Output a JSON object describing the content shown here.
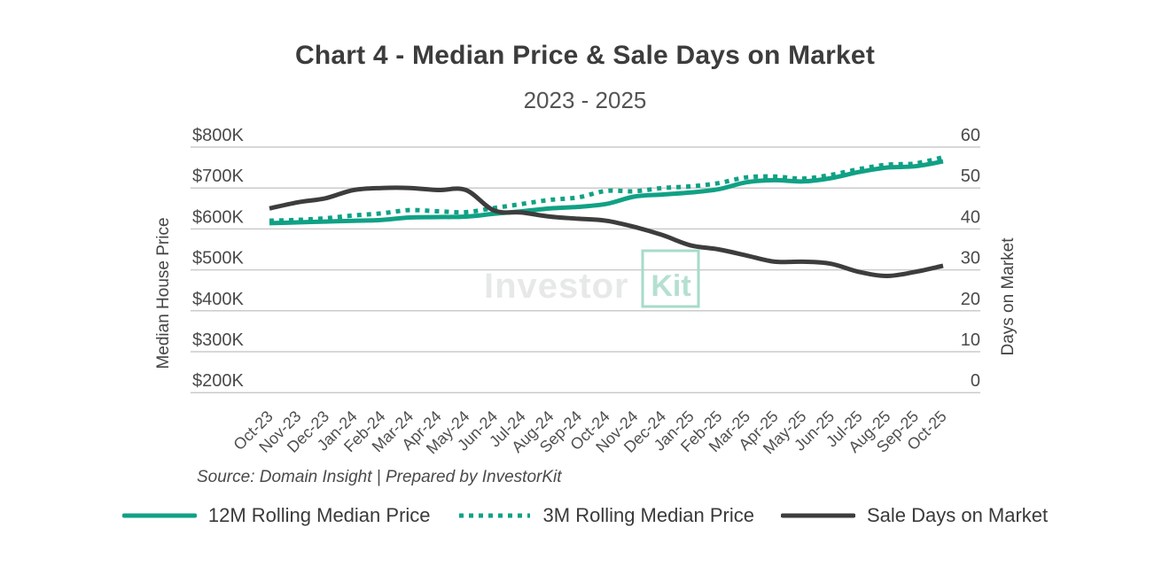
{
  "chart_data": {
    "type": "line",
    "title": "Chart 4 - Median Price & Sale Days on Market",
    "subtitle": "2023 - 2025",
    "categories": [
      "Oct-23",
      "Nov-23",
      "Dec-23",
      "Jan-24",
      "Feb-24",
      "Mar-24",
      "Apr-24",
      "May-24",
      "Jun-24",
      "Jul-24",
      "Aug-24",
      "Sep-24",
      "Oct-24",
      "Nov-24",
      "Dec-24",
      "Jan-25",
      "Feb-25",
      "Mar-25",
      "Apr-25",
      "May-25",
      "Jun-25",
      "Jul-25",
      "Aug-25",
      "Sep-25",
      "Oct-25"
    ],
    "series": [
      {
        "name": "12M Rolling Median Price",
        "axis": "left",
        "unit": "price_thousands",
        "line_style": "solid",
        "color": "#10a185",
        "values": [
          614,
          616,
          618,
          620,
          622,
          628,
          629,
          630,
          637,
          643,
          650,
          654,
          661,
          679,
          684,
          689,
          697,
          714,
          719,
          716,
          724,
          739,
          750,
          753,
          765
        ]
      },
      {
        "name": "3M Rolling Median Price",
        "axis": "left",
        "unit": "price_thousands",
        "line_style": "dotted",
        "color": "#10a185",
        "values": [
          620,
          622,
          626,
          633,
          638,
          646,
          643,
          641,
          651,
          661,
          671,
          677,
          693,
          692,
          700,
          704,
          712,
          726,
          728,
          723,
          732,
          746,
          757,
          760,
          775
        ]
      },
      {
        "name": "Sale Days on Market",
        "axis": "right",
        "unit": "days",
        "line_style": "solid",
        "color": "#3d3d3d",
        "values": [
          45,
          46.5,
          47.5,
          49.5,
          50,
          50,
          49.5,
          49.5,
          44.5,
          44,
          43,
          42.5,
          42,
          40.5,
          38.5,
          36,
          35,
          33.5,
          32,
          32,
          31.5,
          29.5,
          28.5,
          29.5,
          31
        ]
      }
    ],
    "left_axis": {
      "title": "Median House Price",
      "ticks": [
        "$800K",
        "$700K",
        "$600K",
        "$500K",
        "$400K",
        "$300K",
        "$200K"
      ],
      "tick_values_thousands": [
        800,
        700,
        600,
        500,
        400,
        300,
        200
      ],
      "range_thousands": [
        200,
        800
      ]
    },
    "right_axis": {
      "title": "Days on Market",
      "ticks": [
        "60",
        "50",
        "40",
        "30",
        "20",
        "10",
        "0"
      ],
      "tick_values": [
        60,
        50,
        40,
        30,
        20,
        10,
        0
      ],
      "range": [
        0,
        60
      ]
    },
    "grid": "horizontal",
    "legend_position": "bottom"
  },
  "footer": {
    "source": "Source: Domain Insight | Prepared by InvestorKit"
  },
  "watermark": {
    "prefix": "Investor",
    "boxed": "Kit"
  },
  "colors": {
    "accent_teal": "#10a185",
    "dark_line": "#3d3d3d",
    "gridline": "#cbcbcb",
    "title_text": "#3c3c3c",
    "tick_text": "#4a4a4a",
    "watermark_gray": "#e7e9e9",
    "watermark_teal": "#b5e0d1",
    "watermark_box": "#a6dbc8"
  }
}
